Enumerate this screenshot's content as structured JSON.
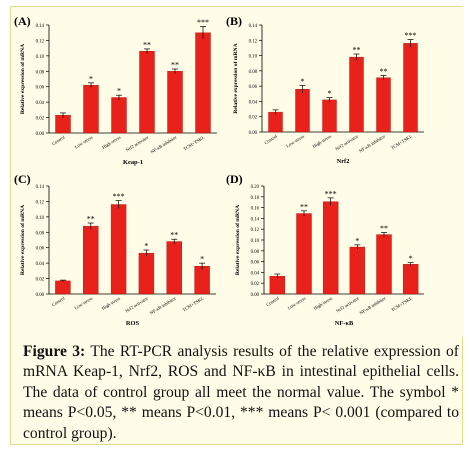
{
  "figure": {
    "caption_label": "Figure 3:",
    "caption_text": "The RT-PCR analysis results of the relative expression of mRNA Keap-1, Nrf2, ROS and NF-κB in intestinal epithelial cells. The data of control group all meet the normal value. The symbol * means P<0.05, ** means P<0.01, *** means P< 0.001 (compared to control group)."
  },
  "colors": {
    "bar": "#e8221b",
    "bar_edge": "#b0100a",
    "axis": "#000000",
    "background": "#fffde8"
  },
  "chart_data": [
    {
      "type": "bar",
      "panel": "(A)",
      "title": "",
      "xlabel": "Keap-1",
      "ylabel": "Relative expression of mRNA",
      "ylim": [
        0,
        0.14
      ],
      "yticks": [
        "0.00",
        "0.02",
        "0.04",
        "0.06",
        "0.08",
        "0.10",
        "0.12",
        "0.14"
      ],
      "categories": [
        "Control",
        "Low-stress",
        "High-stress",
        "Nrf2 activator",
        "NF-κB inhibitor",
        "TCM+TSKL"
      ],
      "values": [
        0.023,
        0.062,
        0.046,
        0.106,
        0.08,
        0.13
      ],
      "errors": [
        0.003,
        0.003,
        0.003,
        0.003,
        0.003,
        0.008
      ],
      "significance": [
        "",
        "*",
        "*",
        "**",
        "**",
        "***"
      ]
    },
    {
      "type": "bar",
      "panel": "(B)",
      "title": "",
      "xlabel": "Nrf2",
      "ylabel": "Relative expression of mRNA",
      "ylim": [
        0,
        0.14
      ],
      "yticks": [
        "0.00",
        "0.02",
        "0.04",
        "0.06",
        "0.08",
        "0.10",
        "0.12",
        "0.14"
      ],
      "categories": [
        "Control",
        "Low-stress",
        "High-stress",
        "Nrf2 activator",
        "NF-κB inhibitor",
        "TCM+TSKL"
      ],
      "values": [
        0.026,
        0.056,
        0.042,
        0.098,
        0.071,
        0.116
      ],
      "errors": [
        0.003,
        0.005,
        0.003,
        0.004,
        0.003,
        0.005
      ],
      "significance": [
        "",
        "*",
        "*",
        "**",
        "**",
        "***"
      ]
    },
    {
      "type": "bar",
      "panel": "(C)",
      "title": "",
      "xlabel": "ROS",
      "ylabel": "Relative expression of mRNA",
      "ylim": [
        0,
        0.14
      ],
      "yticks": [
        "0.00",
        "0.02",
        "0.04",
        "0.06",
        "0.08",
        "0.10",
        "0.12",
        "0.14"
      ],
      "categories": [
        "Control",
        "Low-stress",
        "High-stress",
        "Nrf2 activator",
        "NF-κB inhibitor",
        "TCM+TSKL"
      ],
      "values": [
        0.017,
        0.088,
        0.116,
        0.053,
        0.068,
        0.036
      ],
      "errors": [
        0.001,
        0.004,
        0.005,
        0.004,
        0.003,
        0.004
      ],
      "significance": [
        "",
        "**",
        "***",
        "*",
        "**",
        "*"
      ]
    },
    {
      "type": "bar",
      "panel": "(D)",
      "title": "",
      "xlabel": "NF-κB",
      "ylabel": "Relative expression of mRNA",
      "ylim": [
        0,
        0.2
      ],
      "yticks": [
        "0.00",
        "0.02",
        "0.04",
        "0.06",
        "0.08",
        "0.10",
        "0.12",
        "0.14",
        "0.16",
        "0.18",
        "0.20"
      ],
      "categories": [
        "Control",
        "Low-stress",
        "High-stress",
        "Nrf2 activator",
        "NF-κB inhibitor",
        "TCM+TSKL"
      ],
      "values": [
        0.033,
        0.149,
        0.171,
        0.087,
        0.11,
        0.055
      ],
      "errors": [
        0.004,
        0.005,
        0.007,
        0.004,
        0.004,
        0.003
      ],
      "significance": [
        "",
        "**",
        "***",
        "*",
        "**",
        "*"
      ]
    }
  ]
}
